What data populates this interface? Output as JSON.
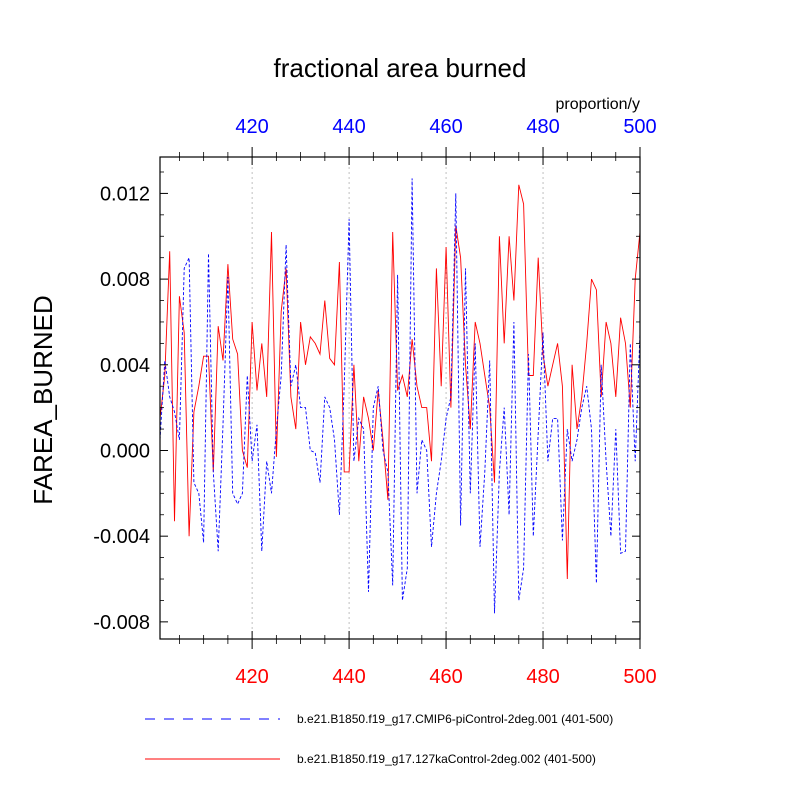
{
  "chart_data": {
    "type": "line",
    "title": "fractional area burned",
    "units": "proportion/y",
    "ylabel": "FAREA_BURNED",
    "xlim": [
      401,
      500
    ],
    "ylim": [
      -0.0088,
      0.0137
    ],
    "yticks": [
      -0.008,
      -0.004,
      0.0,
      0.004,
      0.008,
      0.012
    ],
    "ytick_labels": [
      "-0.008",
      "-0.004",
      "0.000",
      "0.004",
      "0.008",
      "0.012"
    ],
    "xticks": [
      420,
      440,
      460,
      480,
      500
    ],
    "xtick_labels": [
      "420",
      "440",
      "460",
      "480",
      "500"
    ],
    "series": [
      {
        "name": "b.e21.B1850.f19_g17.CMIP6-piControl-2deg.001 (401-500)",
        "color": "#0000ff",
        "dash": "dashed",
        "x": [
          401,
          402,
          403,
          404,
          405,
          406,
          407,
          408,
          409,
          410,
          411,
          412,
          413,
          414,
          415,
          416,
          417,
          418,
          419,
          420,
          421,
          422,
          423,
          424,
          425,
          426,
          427,
          428,
          429,
          430,
          431,
          432,
          433,
          434,
          435,
          436,
          437,
          438,
          439,
          440,
          441,
          442,
          443,
          444,
          445,
          446,
          447,
          448,
          449,
          450,
          451,
          452,
          453,
          454,
          455,
          456,
          457,
          458,
          459,
          460,
          461,
          462,
          463,
          464,
          465,
          466,
          467,
          468,
          469,
          470,
          471,
          472,
          473,
          474,
          475,
          476,
          477,
          478,
          479,
          480,
          481,
          482,
          483,
          484,
          485,
          486,
          487,
          488,
          489,
          490,
          491,
          492,
          493,
          494,
          495,
          496,
          497,
          498,
          499,
          500
        ],
        "values": [
          0.0005,
          0.0042,
          0.0025,
          0.0018,
          0.0005,
          0.0085,
          0.009,
          -0.0015,
          -0.002,
          -0.0043,
          0.0092,
          -0.001,
          -0.0047,
          0.0012,
          0.0081,
          -0.002,
          -0.0025,
          -0.002,
          0.0035,
          -0.0005,
          0.0012,
          -0.0047,
          -0.0005,
          -0.002,
          0.001,
          0.0035,
          0.0096,
          0.003,
          0.004,
          0.002,
          0.002,
          0.0,
          -0.0001,
          -0.0015,
          0.0025,
          0.002,
          0.0005,
          -0.003,
          0.003,
          0.0108,
          -0.0005,
          0.0015,
          0.001,
          -0.0066,
          0.002,
          0.003,
          0.0,
          -0.001,
          -0.0063,
          0.0082,
          -0.007,
          -0.0055,
          0.0127,
          -0.002,
          0.0005,
          0.0,
          -0.0045,
          -0.002,
          -0.0005,
          0.0015,
          0.0025,
          0.012,
          -0.0035,
          0.0085,
          -0.002,
          0.005,
          -0.0045,
          -0.001,
          0.0042,
          -0.0076,
          -0.001,
          0.002,
          -0.003,
          0.006,
          -0.007,
          -0.0055,
          0.0045,
          -0.004,
          0.0008,
          0.0055,
          -0.0005,
          0.0015,
          0.0015,
          -0.0042,
          0.001,
          -0.0005,
          0.0005,
          0.002,
          0.003,
          0.001,
          -0.0062,
          0.004,
          -0.0005,
          -0.004,
          0.001,
          -0.0048,
          -0.0047,
          0.005,
          -0.0005,
          0.0055
        ]
      },
      {
        "name": "b.e21.B1850.f19_g17.127kaControl-2deg.002 (401-500)",
        "color": "#ff0000",
        "dash": "solid",
        "x": [
          401,
          402,
          403,
          404,
          405,
          406,
          407,
          408,
          409,
          410,
          411,
          412,
          413,
          414,
          415,
          416,
          417,
          418,
          419,
          420,
          421,
          422,
          423,
          424,
          425,
          426,
          427,
          428,
          429,
          430,
          431,
          432,
          433,
          434,
          435,
          436,
          437,
          438,
          439,
          440,
          441,
          442,
          443,
          444,
          445,
          446,
          447,
          448,
          449,
          450,
          451,
          452,
          453,
          454,
          455,
          456,
          457,
          458,
          459,
          460,
          461,
          462,
          463,
          464,
          465,
          466,
          467,
          468,
          469,
          470,
          471,
          472,
          473,
          474,
          475,
          476,
          477,
          478,
          479,
          480,
          481,
          482,
          483,
          484,
          485,
          486,
          487,
          488,
          489,
          490,
          491,
          492,
          493,
          494,
          495,
          496,
          497,
          498,
          499,
          500
        ],
        "values": [
          0.0015,
          0.0035,
          0.0093,
          -0.0033,
          0.0072,
          0.0055,
          -0.004,
          0.0018,
          0.003,
          0.0044,
          0.0044,
          -0.001,
          0.0058,
          0.0042,
          0.0087,
          0.0052,
          0.0045,
          0.0,
          -0.0008,
          0.006,
          0.0028,
          0.005,
          0.0025,
          0.0102,
          -0.0003,
          0.0065,
          0.0085,
          0.0025,
          0.001,
          0.006,
          0.004,
          0.0053,
          0.005,
          0.0045,
          0.007,
          0.0043,
          0.004,
          0.0088,
          -0.001,
          -0.001,
          0.004,
          -0.0005,
          0.0025,
          0.0015,
          0.0,
          0.0028,
          0.0005,
          -0.0023,
          0.0102,
          0.0028,
          0.0035,
          0.0025,
          0.0052,
          0.003,
          0.002,
          0.002,
          -0.0005,
          0.0085,
          0.003,
          0.0095,
          0.002,
          0.0105,
          0.009,
          0.004,
          0.001,
          0.006,
          0.005,
          0.0035,
          0.002,
          -0.0015,
          0.01,
          0.005,
          0.01,
          0.007,
          0.0124,
          0.0115,
          0.0035,
          0.0035,
          0.009,
          0.0045,
          0.003,
          0.004,
          0.005,
          0.003,
          -0.006,
          0.004,
          0.001,
          0.0025,
          0.005,
          0.008,
          0.0075,
          0.0025,
          0.006,
          0.005,
          0.0025,
          0.0062,
          0.005,
          0.002,
          0.008,
          0.0102
        ]
      }
    ],
    "grid": "vertical-dotted"
  }
}
